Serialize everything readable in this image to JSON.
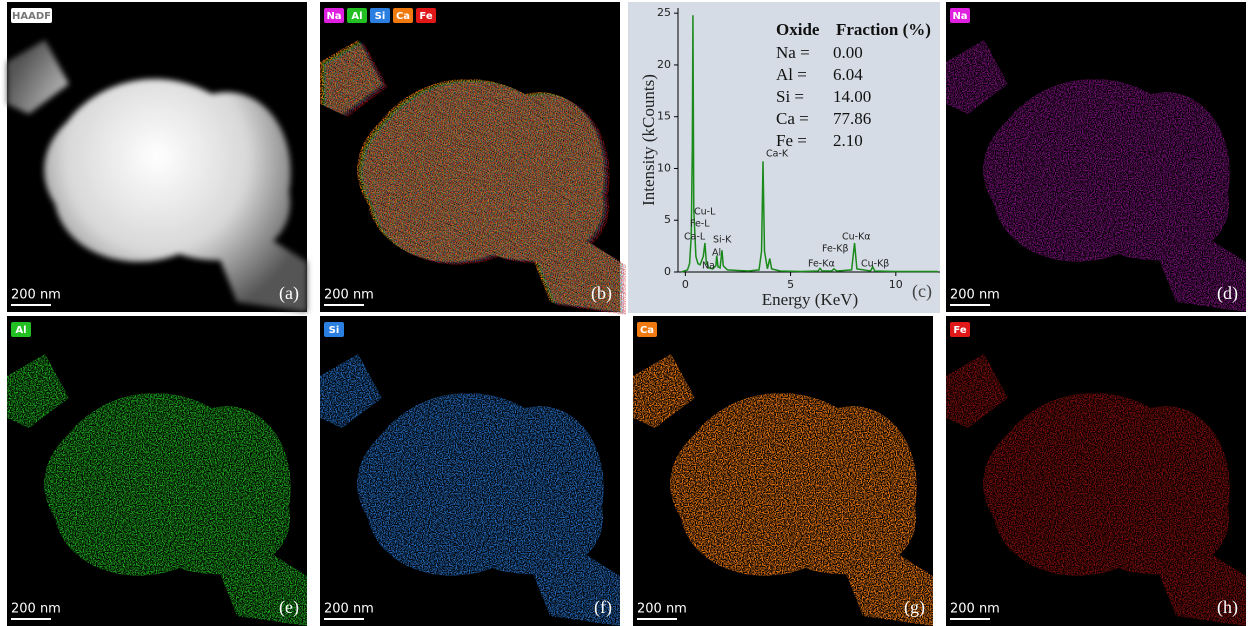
{
  "panels": [
    {
      "label": "(a)",
      "scale_bar": "200 nm",
      "badges": [
        {
          "text": "HAADF",
          "color": "#ffffff"
        }
      ]
    },
    {
      "label": "(b)",
      "scale_bar": "200 nm",
      "badges": [
        {
          "text": "Na",
          "color": "#e020e0"
        },
        {
          "text": "Al",
          "color": "#22c022"
        },
        {
          "text": "Si",
          "color": "#2a7fe0"
        },
        {
          "text": "Ca",
          "color": "#f07a10"
        },
        {
          "text": "Fe",
          "color": "#e01818"
        }
      ]
    },
    {
      "label": "(c)"
    },
    {
      "label": "(d)",
      "scale_bar": "200 nm",
      "badges": [
        {
          "text": "Na",
          "color": "#e020e0"
        }
      ]
    },
    {
      "label": "(e)",
      "scale_bar": "200 nm",
      "badges": [
        {
          "text": "Al",
          "color": "#22c022"
        }
      ]
    },
    {
      "label": "(f)",
      "scale_bar": "200 nm",
      "badges": [
        {
          "text": "Si",
          "color": "#2a7fe0"
        }
      ]
    },
    {
      "label": "(g)",
      "scale_bar": "200 nm",
      "badges": [
        {
          "text": "Ca",
          "color": "#f07a10"
        }
      ]
    },
    {
      "label": "(h)",
      "scale_bar": "200 nm",
      "badges": [
        {
          "text": "Fe",
          "color": "#e01818"
        }
      ]
    }
  ],
  "chart_data": {
    "type": "line",
    "x_label": "Energy (KeV)",
    "y_label": "Intensity (kCounts)",
    "x": [
      -0.2,
      0.1,
      0.2,
      0.28,
      0.33,
      0.36,
      0.4,
      0.5,
      0.6,
      0.7,
      0.85,
      0.93,
      1.0,
      1.04,
      1.1,
      1.3,
      1.45,
      1.49,
      1.55,
      1.65,
      1.74,
      1.8,
      2.0,
      2.5,
      3.0,
      3.5,
      3.62,
      3.69,
      3.76,
      3.9,
      4.01,
      4.1,
      4.5,
      5.5,
      6.3,
      6.4,
      6.5,
      6.95,
      7.06,
      7.2,
      7.9,
      8.04,
      8.15,
      8.8,
      8.9,
      9.0,
      10,
      11,
      12
    ],
    "series": [
      {
        "color": "#1a8a1a",
        "values": [
          0,
          0.2,
          0.8,
          3.5,
          12,
          24.8,
          6,
          1.5,
          0.8,
          0.7,
          1.5,
          2.8,
          0.8,
          0.9,
          0.4,
          0.3,
          0.6,
          1.6,
          0.5,
          0.4,
          2.1,
          0.6,
          0.2,
          0.15,
          0.1,
          0.2,
          2,
          10.7,
          2,
          0.3,
          1.3,
          0.3,
          0.1,
          0.05,
          0.1,
          0.35,
          0.1,
          0.1,
          0.3,
          0.1,
          0.2,
          2.8,
          0.3,
          0.1,
          0.5,
          0.1,
          0.05,
          0.05,
          0.05
        ]
      }
    ],
    "xlim": [
      -0.35,
      12.1
    ],
    "ylim": [
      0,
      25.5
    ],
    "xticks": [
      0,
      5,
      10
    ],
    "yticks": [
      0,
      5,
      10,
      15,
      20,
      25
    ],
    "annotations": [
      "Cu-L",
      "Fe-L",
      "Ca-L",
      "Si-K",
      "Al",
      "Na",
      "Ca-K",
      "Fe-Kβ",
      "Cu-Kα",
      "Fe-Kα",
      "Cu-Kβ"
    ],
    "table": {
      "header": [
        "Oxide",
        "Fraction (%)"
      ],
      "rows": [
        [
          "Na =",
          "0.00"
        ],
        [
          "Al =",
          "6.04"
        ],
        [
          "Si  =",
          "14.00"
        ],
        [
          "Ca =",
          "77.86"
        ],
        [
          "Fe  =",
          "2.10"
        ]
      ]
    }
  }
}
